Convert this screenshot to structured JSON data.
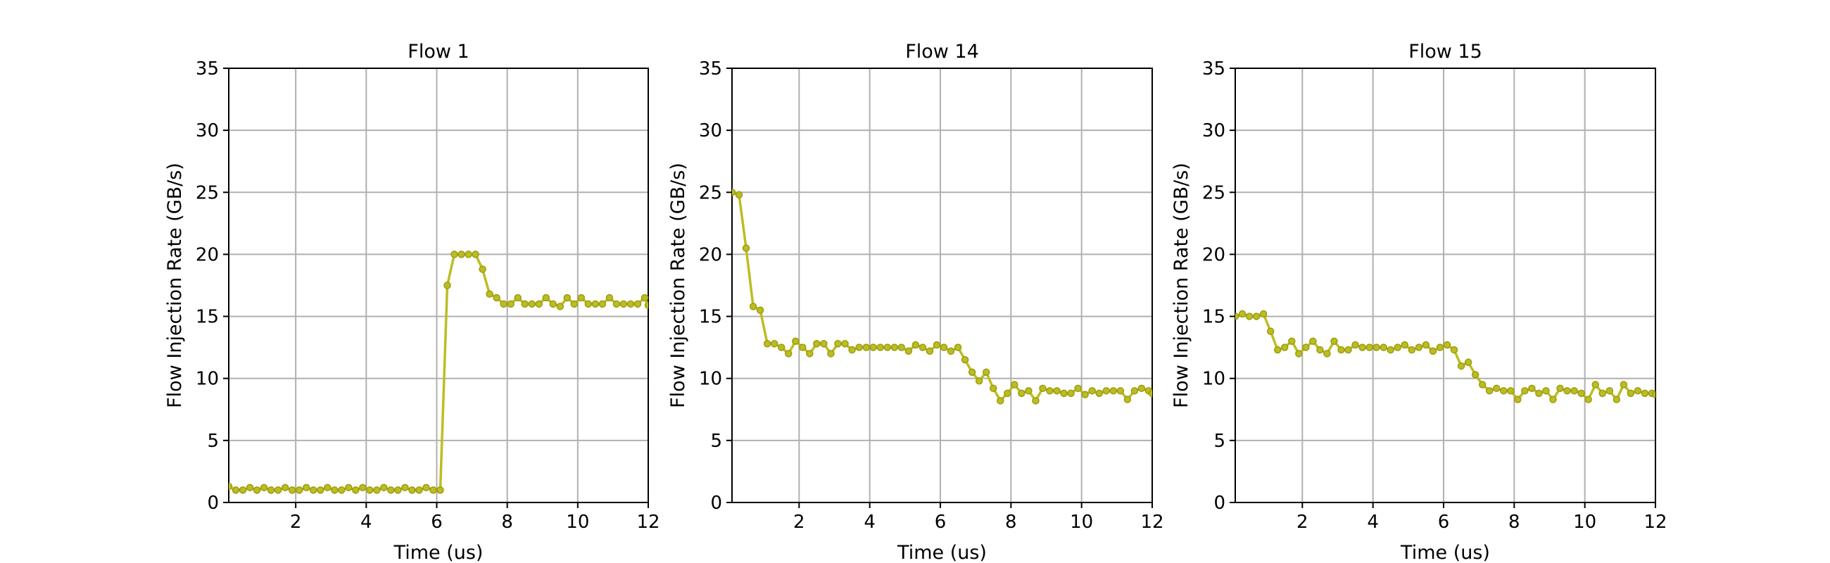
{
  "chart_data": [
    {
      "type": "line",
      "title": "Flow 1",
      "xlabel": "Time (us)",
      "ylabel": "Flow Injection Rate (GB/s)",
      "xlim": [
        0.1,
        12
      ],
      "ylim": [
        0,
        35
      ],
      "xticks": [
        "2",
        "4",
        "6",
        "8",
        "10",
        "12"
      ],
      "yticks": [
        "0",
        "5",
        "10",
        "15",
        "20",
        "25",
        "30",
        "35"
      ],
      "grid": true,
      "color": "#bcbd22",
      "series": [
        {
          "x": [
            0.1,
            0.3,
            0.5,
            0.7,
            0.9,
            1.1,
            1.3,
            1.5,
            1.7,
            1.9,
            2.1,
            2.3,
            2.5,
            2.7,
            2.9,
            3.1,
            3.3,
            3.5,
            3.7,
            3.9,
            4.1,
            4.3,
            4.5,
            4.7,
            4.9,
            5.1,
            5.3,
            5.5,
            5.7,
            5.9,
            6.1,
            6.3,
            6.5,
            6.7,
            6.9,
            7.1,
            7.3,
            7.5,
            7.7,
            7.9,
            8.1,
            8.3,
            8.5,
            8.7,
            8.9,
            9.1,
            9.3,
            9.5,
            9.7,
            9.9,
            10.1,
            10.3,
            10.5,
            10.7,
            10.9,
            11.1,
            11.3,
            11.5,
            11.7,
            11.9,
            12.0
          ],
          "y": [
            1.3,
            1.0,
            1.0,
            1.2,
            1.0,
            1.2,
            1.0,
            1.0,
            1.2,
            1.0,
            1.0,
            1.2,
            1.0,
            1.0,
            1.2,
            1.0,
            1.0,
            1.2,
            1.0,
            1.2,
            1.0,
            1.0,
            1.2,
            1.0,
            1.0,
            1.2,
            1.0,
            1.0,
            1.2,
            1.0,
            1.0,
            17.5,
            20.0,
            20.0,
            20.0,
            20.0,
            18.8,
            16.8,
            16.5,
            16.0,
            16.0,
            16.5,
            16.0,
            16.0,
            16.0,
            16.5,
            16.0,
            15.8,
            16.5,
            16.0,
            16.5,
            16.0,
            16.0,
            16.0,
            16.5,
            16.0,
            16.0,
            16.0,
            16.0,
            16.5,
            15.9
          ]
        }
      ]
    },
    {
      "type": "line",
      "title": "Flow 14",
      "xlabel": "Time (us)",
      "ylabel": "Flow Injection Rate (GB/s)",
      "xlim": [
        0.1,
        12
      ],
      "ylim": [
        0,
        35
      ],
      "xticks": [
        "2",
        "4",
        "6",
        "8",
        "10",
        "12"
      ],
      "yticks": [
        "0",
        "5",
        "10",
        "15",
        "20",
        "25",
        "30",
        "35"
      ],
      "grid": true,
      "color": "#bcbd22",
      "series": [
        {
          "x": [
            0.1,
            0.3,
            0.5,
            0.7,
            0.9,
            1.1,
            1.3,
            1.5,
            1.7,
            1.9,
            2.1,
            2.3,
            2.5,
            2.7,
            2.9,
            3.1,
            3.3,
            3.5,
            3.7,
            3.9,
            4.1,
            4.3,
            4.5,
            4.7,
            4.9,
            5.1,
            5.3,
            5.5,
            5.7,
            5.9,
            6.1,
            6.3,
            6.5,
            6.7,
            6.9,
            7.1,
            7.3,
            7.5,
            7.7,
            7.9,
            8.1,
            8.3,
            8.5,
            8.7,
            8.9,
            9.1,
            9.3,
            9.5,
            9.7,
            9.9,
            10.1,
            10.3,
            10.5,
            10.7,
            10.9,
            11.1,
            11.3,
            11.5,
            11.7,
            11.9,
            12.0
          ],
          "y": [
            25.0,
            24.8,
            20.5,
            15.8,
            15.5,
            12.8,
            12.8,
            12.5,
            12.0,
            13.0,
            12.5,
            12.0,
            12.8,
            12.8,
            12.0,
            12.8,
            12.8,
            12.3,
            12.5,
            12.5,
            12.5,
            12.5,
            12.5,
            12.5,
            12.5,
            12.2,
            12.7,
            12.5,
            12.2,
            12.7,
            12.5,
            12.2,
            12.5,
            11.5,
            10.5,
            9.8,
            10.5,
            9.2,
            8.2,
            8.8,
            9.5,
            8.8,
            9.0,
            8.2,
            9.2,
            9.0,
            9.0,
            8.8,
            8.8,
            9.2,
            8.7,
            9.0,
            8.8,
            9.0,
            9.0,
            9.0,
            8.3,
            9.0,
            9.2,
            9.0,
            8.8
          ]
        }
      ]
    },
    {
      "type": "line",
      "title": "Flow 15",
      "xlabel": "Time (us)",
      "ylabel": "Flow Injection Rate (GB/s)",
      "xlim": [
        0.1,
        12
      ],
      "ylim": [
        0,
        35
      ],
      "xticks": [
        "2",
        "4",
        "6",
        "8",
        "10",
        "12"
      ],
      "yticks": [
        "0",
        "5",
        "10",
        "15",
        "20",
        "25",
        "30",
        "35"
      ],
      "grid": true,
      "color": "#bcbd22",
      "series": [
        {
          "x": [
            0.1,
            0.3,
            0.5,
            0.7,
            0.9,
            1.1,
            1.3,
            1.5,
            1.7,
            1.9,
            2.1,
            2.3,
            2.5,
            2.7,
            2.9,
            3.1,
            3.3,
            3.5,
            3.7,
            3.9,
            4.1,
            4.3,
            4.5,
            4.7,
            4.9,
            5.1,
            5.3,
            5.5,
            5.7,
            5.9,
            6.1,
            6.3,
            6.5,
            6.7,
            6.9,
            7.1,
            7.3,
            7.5,
            7.7,
            7.9,
            8.1,
            8.3,
            8.5,
            8.7,
            8.9,
            9.1,
            9.3,
            9.5,
            9.7,
            9.9,
            10.1,
            10.3,
            10.5,
            10.7,
            10.9,
            11.1,
            11.3,
            11.5,
            11.7,
            11.9,
            12.0
          ],
          "y": [
            15.0,
            15.2,
            15.0,
            15.0,
            15.2,
            13.8,
            12.3,
            12.5,
            13.0,
            12.0,
            12.5,
            13.0,
            12.3,
            12.0,
            13.0,
            12.3,
            12.3,
            12.7,
            12.5,
            12.5,
            12.5,
            12.5,
            12.3,
            12.5,
            12.7,
            12.3,
            12.5,
            12.7,
            12.2,
            12.5,
            12.7,
            12.3,
            11.0,
            11.3,
            10.3,
            9.5,
            9.0,
            9.2,
            9.0,
            9.0,
            8.3,
            9.0,
            9.2,
            8.8,
            9.0,
            8.3,
            9.2,
            9.0,
            9.0,
            8.8,
            8.3,
            9.5,
            8.8,
            9.0,
            8.3,
            9.5,
            8.8,
            9.0,
            8.8,
            8.8,
            8.7
          ]
        }
      ]
    }
  ]
}
